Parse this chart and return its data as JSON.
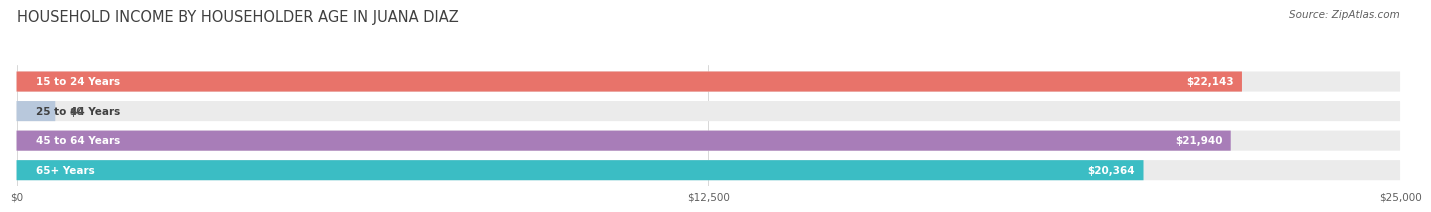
{
  "title": "HOUSEHOLD INCOME BY HOUSEHOLDER AGE IN JUANA DIAZ",
  "source": "Source: ZipAtlas.com",
  "categories": [
    "15 to 24 Years",
    "25 to 44 Years",
    "45 to 64 Years",
    "65+ Years"
  ],
  "values": [
    22143,
    0,
    21940,
    20364
  ],
  "bar_colors": [
    "#E8736A",
    "#B8C8DC",
    "#A87DB8",
    "#3BBDC4"
  ],
  "bar_bg_color": "#EBEBEB",
  "value_labels": [
    "$22,143",
    "$0",
    "$21,940",
    "$20,364"
  ],
  "xlim": [
    0,
    25000
  ],
  "xticks": [
    0,
    12500,
    25000
  ],
  "xtick_labels": [
    "$0",
    "$12,500",
    "$25,000"
  ],
  "title_fontsize": 10.5,
  "source_fontsize": 7.5,
  "label_fontsize": 7.5,
  "value_fontsize": 7.5,
  "background_color": "#FFFFFF",
  "title_color": "#404040",
  "source_color": "#606060",
  "bar_height": 0.68,
  "bar_gap": 1.0
}
